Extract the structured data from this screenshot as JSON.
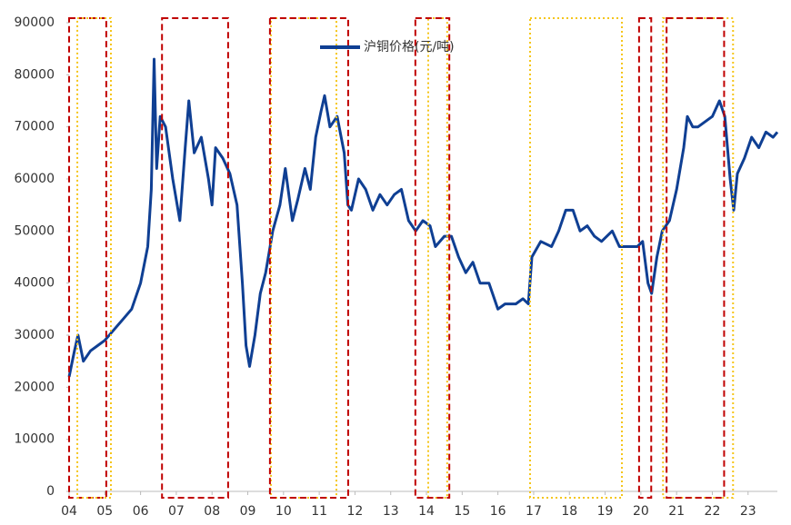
{
  "chart_data": {
    "type": "line",
    "legend_label": "沪铜价格(元/吨)",
    "xlim": [
      4,
      23.82
    ],
    "ylim": [
      0,
      90000
    ],
    "xticks": [
      {
        "value": 4,
        "label": "04"
      },
      {
        "value": 5,
        "label": "05"
      },
      {
        "value": 6,
        "label": "06"
      },
      {
        "value": 7,
        "label": "07"
      },
      {
        "value": 8,
        "label": "08"
      },
      {
        "value": 9,
        "label": "09"
      },
      {
        "value": 10,
        "label": "10"
      },
      {
        "value": 11,
        "label": "11"
      },
      {
        "value": 12,
        "label": "12"
      },
      {
        "value": 13,
        "label": "13"
      },
      {
        "value": 14,
        "label": "14"
      },
      {
        "value": 15,
        "label": "15"
      },
      {
        "value": 16,
        "label": "16"
      },
      {
        "value": 17,
        "label": "17"
      },
      {
        "value": 18,
        "label": "18"
      },
      {
        "value": 19,
        "label": "19"
      },
      {
        "value": 20,
        "label": "20"
      },
      {
        "value": 21,
        "label": "21"
      },
      {
        "value": 22,
        "label": "22"
      },
      {
        "value": 23,
        "label": "23"
      }
    ],
    "yticks": [
      0,
      10000,
      20000,
      30000,
      40000,
      50000,
      60000,
      70000,
      80000,
      90000
    ],
    "x": [
      4.0,
      4.15,
      4.25,
      4.4,
      4.6,
      4.8,
      5.0,
      5.25,
      5.5,
      5.75,
      6.0,
      6.2,
      6.3,
      6.38,
      6.45,
      6.55,
      6.7,
      6.9,
      7.1,
      7.25,
      7.35,
      7.5,
      7.7,
      7.9,
      8.0,
      8.1,
      8.3,
      8.5,
      8.7,
      8.85,
      8.95,
      9.05,
      9.2,
      9.35,
      9.5,
      9.7,
      9.9,
      10.05,
      10.25,
      10.4,
      10.6,
      10.75,
      10.9,
      11.05,
      11.15,
      11.3,
      11.5,
      11.7,
      11.8,
      11.9,
      12.1,
      12.3,
      12.5,
      12.7,
      12.9,
      13.1,
      13.3,
      13.5,
      13.7,
      13.9,
      14.1,
      14.25,
      14.5,
      14.7,
      14.9,
      15.1,
      15.3,
      15.5,
      15.75,
      15.9,
      16.0,
      16.2,
      16.5,
      16.7,
      16.85,
      16.95,
      17.2,
      17.5,
      17.7,
      17.9,
      18.1,
      18.3,
      18.5,
      18.7,
      18.9,
      19.2,
      19.4,
      19.7,
      19.9,
      20.05,
      20.2,
      20.3,
      20.45,
      20.6,
      20.8,
      21.0,
      21.2,
      21.3,
      21.45,
      21.6,
      21.8,
      22.0,
      22.2,
      22.35,
      22.5,
      22.6,
      22.7,
      22.9,
      23.1,
      23.3,
      23.5,
      23.7,
      23.82
    ],
    "series": [
      {
        "name": "沪铜价格(元/吨)",
        "color": "#0f3f93",
        "values": [
          22000,
          27000,
          30000,
          25000,
          27000,
          28000,
          29000,
          31000,
          33000,
          35000,
          40000,
          47000,
          58000,
          83000,
          62000,
          72000,
          70000,
          60000,
          52000,
          66000,
          75000,
          65000,
          68000,
          60000,
          55000,
          66000,
          64000,
          61000,
          55000,
          40000,
          28000,
          24000,
          30000,
          38000,
          42000,
          50000,
          55000,
          62000,
          52000,
          56000,
          62000,
          58000,
          68000,
          73000,
          76000,
          70000,
          72000,
          65000,
          55000,
          54000,
          60000,
          58000,
          54000,
          57000,
          55000,
          57000,
          58000,
          52000,
          50000,
          52000,
          51000,
          47000,
          49000,
          49000,
          45000,
          42000,
          44000,
          40000,
          40000,
          37000,
          35000,
          36000,
          36000,
          37000,
          36000,
          45000,
          48000,
          47000,
          50000,
          54000,
          54000,
          50000,
          51000,
          49000,
          48000,
          50000,
          47000,
          47000,
          47000,
          48000,
          40000,
          38000,
          45000,
          50000,
          52000,
          58000,
          66000,
          72000,
          70000,
          70000,
          71000,
          72000,
          75000,
          72000,
          60000,
          54000,
          61000,
          64000,
          68000,
          66000,
          69000,
          68000,
          69000
        ]
      }
    ],
    "highlights": [
      {
        "x": [
          4.0,
          5.04
        ],
        "color": "#c00000",
        "style": "dashed"
      },
      {
        "x": [
          4.23,
          5.17
        ],
        "color": "#f5c518",
        "style": "dotted"
      },
      {
        "x": [
          6.6,
          8.45
        ],
        "color": "#c00000",
        "style": "dashed"
      },
      {
        "x": [
          9.65,
          11.48
        ],
        "color": "#f5c518",
        "style": "dotted"
      },
      {
        "x": [
          9.62,
          11.81
        ],
        "color": "#c00000",
        "style": "dashed"
      },
      {
        "x": [
          14.05,
          14.58
        ],
        "color": "#f5c518",
        "style": "dotted"
      },
      {
        "x": [
          13.69,
          14.64
        ],
        "color": "#c00000",
        "style": "dashed"
      },
      {
        "x": [
          16.9,
          19.47
        ],
        "color": "#f5c518",
        "style": "dotted"
      },
      {
        "x": [
          19.95,
          20.29
        ],
        "color": "#c00000",
        "style": "dashed"
      },
      {
        "x": [
          20.62,
          22.58
        ],
        "color": "#f5c518",
        "style": "dotted"
      },
      {
        "x": [
          20.72,
          22.33
        ],
        "color": "#c00000",
        "style": "dashed"
      }
    ]
  }
}
